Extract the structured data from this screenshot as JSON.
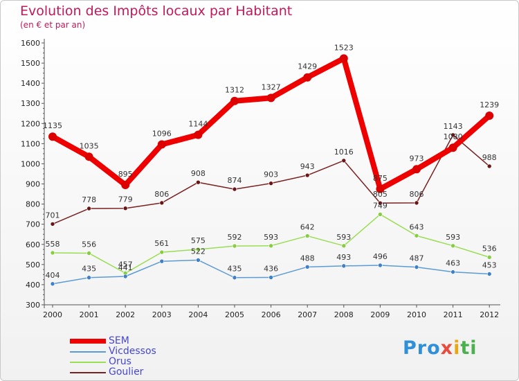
{
  "chart_data": {
    "type": "line",
    "title": "Evolution des Impôts locaux par Habitant",
    "subtitle": "(en € et par an)",
    "xlabel": "",
    "ylabel": "",
    "ylim": [
      300,
      1600
    ],
    "yticks": [
      "300",
      "400",
      "500",
      "600",
      "700",
      "800",
      "900",
      "1000",
      "1100",
      "1200",
      "1300",
      "1400",
      "1500",
      "1600"
    ],
    "categories": [
      "2000",
      "2001",
      "2002",
      "2003",
      "2004",
      "2005",
      "2006",
      "2007",
      "2008",
      "2009",
      "2010",
      "2011",
      "2012"
    ],
    "series": [
      {
        "name": "SEM",
        "color": "#ee0000",
        "values": [
          1135,
          1035,
          895,
          1096,
          1144,
          1312,
          1327,
          1429,
          1523,
          875,
          973,
          1080,
          1239
        ]
      },
      {
        "name": "Vicdessos",
        "color": "#5b9bd5",
        "values": [
          404,
          435,
          441,
          516,
          522,
          435,
          436,
          488,
          493,
          496,
          487,
          463,
          453
        ]
      },
      {
        "name": "Orus",
        "color": "#99dd55",
        "values": [
          558,
          556,
          457,
          561,
          575,
          592,
          593,
          642,
          593,
          749,
          643,
          593,
          536
        ]
      },
      {
        "name": "Goulier",
        "color": "#7a2020",
        "values": [
          701,
          778,
          779,
          806,
          908,
          874,
          903,
          943,
          1016,
          805,
          806,
          1143,
          988
        ]
      }
    ],
    "data_labels": {
      "SEM": [
        "1135",
        "1035",
        "895",
        "1096",
        "1144",
        "1312",
        "1327",
        "1429",
        "1523",
        "875",
        "973",
        "1080",
        "1239"
      ],
      "Vicdessos": [
        "404",
        "435",
        "441",
        "",
        "522",
        "435",
        "436",
        "488",
        "493",
        "496",
        "487",
        "463",
        "453"
      ],
      "Orus": [
        "558",
        "556",
        "457",
        "561",
        "575",
        "592",
        "593",
        "642",
        "593",
        "749",
        "643",
        "593",
        "536"
      ],
      "Goulier": [
        "701",
        "778",
        "779",
        "806",
        "908",
        "874",
        "903",
        "943",
        "1016",
        "805",
        "806",
        "1143",
        "988"
      ]
    },
    "grid": false,
    "legend": "bottom-left"
  },
  "brand": {
    "p1": "Pro",
    "p2": "x",
    "p3": "i",
    "p4": "ti"
  }
}
